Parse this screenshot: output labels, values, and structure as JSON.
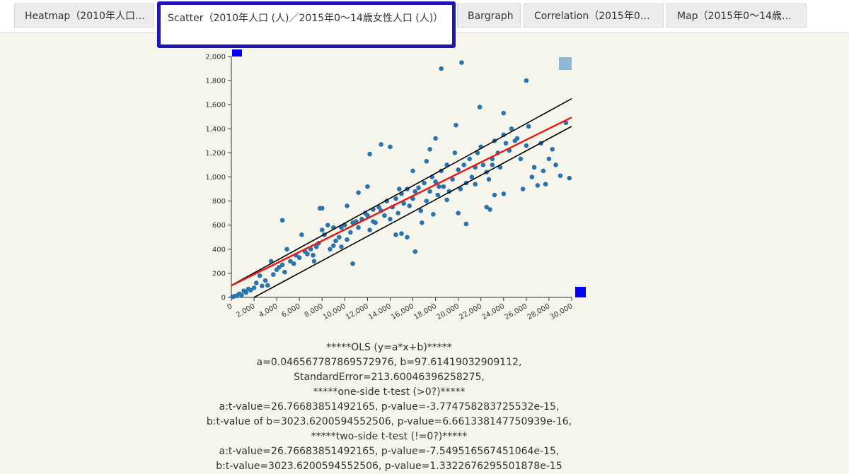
{
  "tabs": [
    {
      "label": "Heatmap（2010年人口…"
    },
    {
      "label": "Scatter（2010年人口 (人)／2015年0～14歳女性人口 (人)）"
    },
    {
      "label": "Bargraph"
    },
    {
      "label": "Correlation（2015年0…"
    },
    {
      "label": "Map（2015年0～14歳…"
    }
  ],
  "stats_lines": [
    "*****OLS (y=a*x+b)*****",
    "a=0.046567787869572976, b=97.61419032909112,",
    "StandardError=213.60046396258275,",
    "*****one-side t-test (>0?)*****",
    "a:t-value=26.76683851492165, p-value=-3.774758283725532e-15,",
    "b:t-value of b=3023.6200594552506, p-value=6.661338147750939e-16,",
    "*****two-side t-test (!=0?)*****",
    "a:t-value=26.76683851492165, p-value=-7.549516567451064e-15,",
    "b:t-value=3023.6200594552506, p-value=1.3322676295501878e-15"
  ],
  "colors": {
    "point": "#2a74ad",
    "regression": "#e8170f",
    "confidence": "#000000",
    "handle": "#0000ff",
    "legend_square": "#8fb6d4"
  },
  "chart_data": {
    "type": "scatter",
    "xlim": [
      0,
      30000
    ],
    "ylim": [
      0,
      2000
    ],
    "x_ticks": [
      "0",
      "2,000",
      "4,000",
      "6,000",
      "8,000",
      "10,000",
      "12,000",
      "14,000",
      "16,000",
      "18,000",
      "20,000",
      "22,000",
      "24,000",
      "26,000",
      "28,000",
      "30,000"
    ],
    "y_ticks": [
      "0",
      "200",
      "400",
      "600",
      "800",
      "1,000",
      "1,200",
      "1,400",
      "1,600",
      "1,800",
      "2,000"
    ],
    "regression": {
      "a": 0.046567787869572976,
      "b": 97.61419032909112
    },
    "confidence_band": {
      "lower": [
        [
          2000,
          0
        ],
        [
          30000,
          1420
        ]
      ],
      "upper": [
        [
          0,
          100
        ],
        [
          30000,
          1650
        ]
      ]
    },
    "points": [
      [
        100,
        5
      ],
      [
        300,
        10
      ],
      [
        500,
        15
      ],
      [
        700,
        30
      ],
      [
        900,
        20
      ],
      [
        1100,
        55
      ],
      [
        1300,
        40
      ],
      [
        1500,
        70
      ],
      [
        1700,
        60
      ],
      [
        2000,
        80
      ],
      [
        2200,
        120
      ],
      [
        2500,
        180
      ],
      [
        2700,
        95
      ],
      [
        3000,
        140
      ],
      [
        3200,
        100
      ],
      [
        3500,
        300
      ],
      [
        3700,
        190
      ],
      [
        4000,
        230
      ],
      [
        4200,
        250
      ],
      [
        4500,
        270
      ],
      [
        4700,
        210
      ],
      [
        4900,
        400
      ],
      [
        5200,
        300
      ],
      [
        5500,
        280
      ],
      [
        5700,
        350
      ],
      [
        6000,
        330
      ],
      [
        4500,
        640
      ],
      [
        6200,
        520
      ],
      [
        6500,
        380
      ],
      [
        6700,
        360
      ],
      [
        7000,
        400
      ],
      [
        7200,
        350
      ],
      [
        7500,
        420
      ],
      [
        7700,
        450
      ],
      [
        8000,
        560
      ],
      [
        8200,
        520
      ],
      [
        8500,
        600
      ],
      [
        8700,
        400
      ],
      [
        9000,
        430
      ],
      [
        9200,
        470
      ],
      [
        9500,
        500
      ],
      [
        9700,
        580
      ],
      [
        10000,
        600
      ],
      [
        10200,
        480
      ],
      [
        10500,
        540
      ],
      [
        10700,
        620
      ],
      [
        11000,
        630
      ],
      [
        11200,
        580
      ],
      [
        11500,
        650
      ],
      [
        9700,
        420
      ],
      [
        10700,
        280
      ],
      [
        11800,
        700
      ],
      [
        12000,
        680
      ],
      [
        12200,
        560
      ],
      [
        12500,
        730
      ],
      [
        12700,
        620
      ],
      [
        13000,
        750
      ],
      [
        13200,
        720
      ],
      [
        13500,
        680
      ],
      [
        13700,
        800
      ],
      [
        14000,
        650
      ],
      [
        14200,
        750
      ],
      [
        14500,
        820
      ],
      [
        14700,
        700
      ],
      [
        15000,
        860
      ],
      [
        15200,
        780
      ],
      [
        15500,
        900
      ],
      [
        15700,
        760
      ],
      [
        16000,
        820
      ],
      [
        16200,
        880
      ],
      [
        16500,
        910
      ],
      [
        16700,
        720
      ],
      [
        17000,
        950
      ],
      [
        17200,
        800
      ],
      [
        17500,
        880
      ],
      [
        17700,
        1000
      ],
      [
        18000,
        960
      ],
      [
        18200,
        850
      ],
      [
        18500,
        1050
      ],
      [
        18700,
        920
      ],
      [
        19000,
        1100
      ],
      [
        19200,
        880
      ],
      [
        19500,
        980
      ],
      [
        19700,
        1200
      ],
      [
        20000,
        1060
      ],
      [
        20200,
        900
      ],
      [
        20500,
        1100
      ],
      [
        20700,
        950
      ],
      [
        21000,
        1150
      ],
      [
        21200,
        1000
      ],
      [
        21500,
        1080
      ],
      [
        21700,
        1200
      ],
      [
        22000,
        1250
      ],
      [
        22200,
        1100
      ],
      [
        22500,
        1040
      ],
      [
        22700,
        980
      ],
      [
        23000,
        1150
      ],
      [
        23200,
        1300
      ],
      [
        23500,
        1200
      ],
      [
        23700,
        1080
      ],
      [
        24000,
        1350
      ],
      [
        24200,
        1280
      ],
      [
        24500,
        1220
      ],
      [
        24700,
        1400
      ],
      [
        25000,
        1300
      ],
      [
        25200,
        1320
      ],
      [
        25500,
        1150
      ],
      [
        26000,
        1260
      ],
      [
        26200,
        1420
      ],
      [
        26500,
        1000
      ],
      [
        26700,
        1080
      ],
      [
        27000,
        930
      ],
      [
        27300,
        1280
      ],
      [
        27500,
        1050
      ],
      [
        27700,
        940
      ],
      [
        28000,
        1150
      ],
      [
        28300,
        1230
      ],
      [
        28600,
        1100
      ],
      [
        29000,
        1010
      ],
      [
        29500,
        1450
      ],
      [
        29800,
        990
      ],
      [
        18500,
        1900
      ],
      [
        20300,
        1950
      ],
      [
        26000,
        1800
      ],
      [
        21900,
        1580
      ],
      [
        24000,
        1530
      ],
      [
        8000,
        740
      ],
      [
        7800,
        740
      ],
      [
        12200,
        1190
      ],
      [
        13200,
        1270
      ],
      [
        14000,
        1250
      ],
      [
        16000,
        1050
      ],
      [
        17500,
        1230
      ],
      [
        18000,
        1320
      ],
      [
        15000,
        530
      ],
      [
        15500,
        500
      ],
      [
        16200,
        380
      ],
      [
        14800,
        900
      ],
      [
        12500,
        630
      ],
      [
        13700,
        800
      ],
      [
        22800,
        730
      ],
      [
        23200,
        850
      ],
      [
        22500,
        750
      ],
      [
        25700,
        900
      ],
      [
        20000,
        700
      ],
      [
        19800,
        1430
      ],
      [
        23000,
        1100
      ],
      [
        17200,
        1130
      ],
      [
        18300,
        920
      ],
      [
        21500,
        940
      ],
      [
        24000,
        860
      ],
      [
        19000,
        810
      ],
      [
        17800,
        690
      ],
      [
        16800,
        620
      ],
      [
        20700,
        610
      ],
      [
        9000,
        580
      ],
      [
        7300,
        300
      ],
      [
        10200,
        760
      ],
      [
        11200,
        870
      ],
      [
        12000,
        920
      ],
      [
        14500,
        520
      ]
    ]
  }
}
